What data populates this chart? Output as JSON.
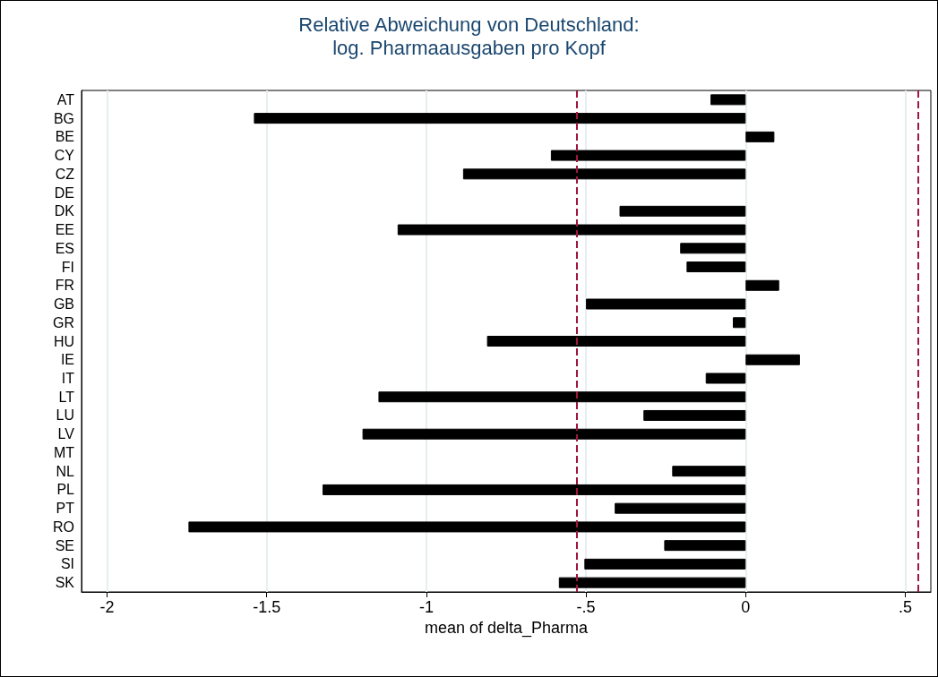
{
  "chart_data": {
    "type": "bar",
    "orientation": "horizontal",
    "title": "Relative Abweichung von Deutschland:\nlog. Pharmaausgaben pro Kopf",
    "xlabel": "mean of delta_Pharma",
    "categories": [
      "AT",
      "BG",
      "BE",
      "CY",
      "CZ",
      "DE",
      "DK",
      "EE",
      "ES",
      "FI",
      "FR",
      "GB",
      "GR",
      "HU",
      "IE",
      "IT",
      "LT",
      "LU",
      "LV",
      "MT",
      "NL",
      "PL",
      "PT",
      "RO",
      "SE",
      "SI",
      "SK"
    ],
    "values": [
      -0.11,
      -1.54,
      0.09,
      -0.61,
      -0.885,
      null,
      -0.395,
      -1.09,
      -0.205,
      -0.185,
      0.105,
      -0.5,
      -0.04,
      -0.81,
      0.17,
      -0.125,
      -1.15,
      -0.32,
      -1.2,
      null,
      -0.23,
      -1.325,
      -0.41,
      -1.745,
      -0.255,
      -0.505,
      -0.585
    ],
    "color": "#000000",
    "xlim": [
      -2.08,
      0.58
    ],
    "xticks": [
      -2,
      -1.5,
      -1,
      {
        "value": -0.5,
        "label": "-.5"
      },
      0,
      {
        "value": 0.5,
        "label": ".5"
      }
    ],
    "ref_lines": [
      {
        "axis": "x",
        "value": -0.53,
        "color": "#a0163c",
        "line_style": "dashed"
      },
      {
        "axis": "x",
        "value": 0.535,
        "color": "#a0163c",
        "line_style": "dashed"
      }
    ],
    "grid": "x"
  }
}
